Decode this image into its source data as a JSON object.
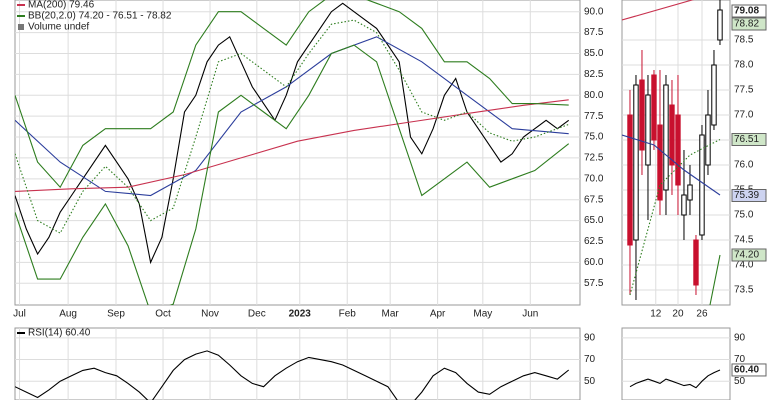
{
  "chart_data": [
    {
      "type": "line",
      "volume_label": "Volume undef",
      "xlim": [
        0,
        250
      ],
      "ylim": [
        54.9,
        91.4
      ],
      "xticks": [
        {
          "value": 2,
          "label": "Jul"
        },
        {
          "value": 23.5,
          "label": "Aug"
        },
        {
          "value": 44.7,
          "label": "Sep"
        },
        {
          "value": 65.5,
          "label": "Oct"
        },
        {
          "value": 86.3,
          "label": "Nov"
        },
        {
          "value": 107,
          "label": "Dec"
        },
        {
          "value": 126,
          "label": "2023"
        },
        {
          "value": 147,
          "label": "Feb"
        },
        {
          "value": 166,
          "label": "Mar"
        },
        {
          "value": 187,
          "label": "Apr"
        },
        {
          "value": 207,
          "label": "May"
        },
        {
          "value": 228,
          "label": "Jun"
        }
      ],
      "yticks": [
        {
          "value": 57.5,
          "label": "57.5"
        },
        {
          "value": 60,
          "label": "60.0"
        },
        {
          "value": 62.5,
          "label": "62.5"
        },
        {
          "value": 65,
          "label": "65.0"
        },
        {
          "value": 67.5,
          "label": "67.5"
        },
        {
          "value": 70,
          "label": "70.0"
        },
        {
          "value": 72.5,
          "label": "72.5"
        },
        {
          "value": 75,
          "label": "75.0"
        },
        {
          "value": 77.5,
          "label": "77.5"
        },
        {
          "value": 80,
          "label": "80.0"
        },
        {
          "value": 82.5,
          "label": "82.5"
        },
        {
          "value": 85,
          "label": "85.0"
        },
        {
          "value": 87.5,
          "label": "87.5"
        },
        {
          "value": 90,
          "label": "90.0"
        }
      ],
      "grid": true,
      "series": [
        {
          "color": "#000000",
          "x": [
            0,
            5,
            10,
            15,
            20,
            25,
            30,
            35,
            40,
            45,
            50,
            55,
            60,
            65,
            70,
            75,
            80,
            85,
            90,
            95,
            100,
            105,
            110,
            115,
            120,
            125,
            130,
            135,
            140,
            145,
            150,
            155,
            160,
            165,
            170,
            175,
            180,
            185,
            190,
            195,
            200,
            205,
            210,
            215,
            220,
            225,
            230,
            235,
            240,
            245
          ],
          "values": [
            68,
            64,
            61,
            63,
            66,
            68,
            70,
            72,
            74,
            72,
            70,
            67,
            60,
            63,
            70,
            78,
            80,
            84,
            86,
            87,
            84,
            81,
            79,
            77,
            80,
            84,
            86,
            88,
            90,
            91,
            90,
            89,
            88,
            86,
            84,
            75,
            73,
            76,
            80,
            82,
            78,
            76,
            74,
            72,
            73,
            75,
            76,
            77,
            76,
            77
          ]
        },
        {
          "color": "#2c3e9c",
          "x": [
            0,
            20,
            40,
            60,
            80,
            100,
            120,
            140,
            160,
            180,
            200,
            220,
            245
          ],
          "values": [
            77,
            72,
            68.5,
            68,
            71,
            78,
            81,
            85,
            87,
            84,
            80,
            76,
            75.4
          ]
        },
        {
          "name": "MA(200) 79.46",
          "color": "#c8324f",
          "x": [
            0,
            25,
            50,
            75,
            100,
            125,
            150,
            175,
            200,
            225,
            245
          ],
          "values": [
            68.5,
            68.8,
            69,
            70.5,
            72.5,
            74.5,
            75.8,
            76.8,
            77.8,
            78.8,
            79.46
          ]
        },
        {
          "name": "BB(20,2.0) 74.20 - 76.51 - 78.82",
          "color": "#2e7d1f",
          "x": [
            0,
            10,
            20,
            30,
            40,
            50,
            60,
            70,
            80,
            90,
            100,
            110,
            120,
            130,
            140,
            150,
            160,
            170,
            180,
            190,
            200,
            210,
            220,
            230,
            245
          ],
          "values": [
            80,
            72,
            69,
            74,
            76,
            76,
            76,
            78,
            86,
            90,
            90,
            88,
            86,
            90,
            92,
            92,
            91,
            90,
            88,
            84,
            84,
            82,
            79,
            79,
            78.82
          ]
        },
        {
          "color": "#2e7d1f",
          "dash": "dotted",
          "x": [
            0,
            10,
            20,
            30,
            40,
            50,
            60,
            70,
            80,
            90,
            100,
            110,
            120,
            130,
            140,
            150,
            160,
            170,
            180,
            190,
            200,
            210,
            220,
            230,
            245
          ],
          "values": [
            73,
            65,
            63.5,
            68.5,
            71.5,
            69,
            65,
            66.5,
            75,
            84,
            85,
            83,
            81,
            85,
            88.5,
            89,
            87.5,
            83,
            78,
            77,
            78,
            75.5,
            74.5,
            75,
            76.51
          ]
        },
        {
          "color": "#2e7d1f",
          "x": [
            0,
            10,
            20,
            30,
            40,
            50,
            60,
            70,
            80,
            90,
            100,
            110,
            120,
            130,
            140,
            150,
            160,
            170,
            180,
            190,
            200,
            210,
            220,
            230,
            245
          ],
          "values": [
            66,
            58,
            58,
            63,
            67,
            62,
            54,
            55,
            64,
            78,
            80,
            78,
            76,
            80,
            85,
            86,
            84,
            76,
            68,
            70,
            72,
            69,
            70,
            71,
            74.2
          ]
        }
      ]
    },
    {
      "type": "candlestick",
      "xlim": [
        -1.33,
        16.67
      ],
      "ylim": [
        73.2,
        79.3
      ],
      "xticks": [
        {
          "value": 4.3,
          "label": "12"
        },
        {
          "value": 8,
          "label": "20"
        },
        {
          "value": 12,
          "label": "26"
        }
      ],
      "yticks": [
        {
          "value": 73.5,
          "label": "73.5"
        },
        {
          "value": 74,
          "label": "74.0"
        },
        {
          "value": 74.5,
          "label": "74.5"
        },
        {
          "value": 75,
          "label": "75.0"
        },
        {
          "value": 75.5,
          "label": "75.5"
        },
        {
          "value": 76,
          "label": "76.0"
        },
        {
          "value": 76.5,
          "label": "76.5"
        },
        {
          "value": 77,
          "label": "77.0"
        },
        {
          "value": 77.5,
          "label": "77.5"
        },
        {
          "value": 78,
          "label": "78.0"
        },
        {
          "value": 78.5,
          "label": "78.5"
        }
      ],
      "grid": true,
      "up_color": "#000000",
      "down_color": "#c8102e",
      "x": [
        0,
        1,
        2,
        3,
        4,
        5,
        6,
        7,
        8,
        9,
        10,
        11,
        12,
        13,
        14,
        15
      ],
      "open": [
        77.0,
        74.5,
        77.7,
        76.0,
        77.8,
        76.8,
        75.5,
        77.2,
        77.0,
        75.0,
        75.3,
        74.5,
        74.6,
        76.0,
        76.8,
        78.5
      ],
      "high": [
        77.5,
        77.8,
        78.3,
        77.8,
        77.9,
        77.9,
        77.8,
        77.7,
        77.8,
        76.3,
        76.0,
        74.6,
        76.8,
        77.5,
        78.3,
        79.3
      ],
      "low": [
        73.4,
        73.3,
        75.8,
        74.9,
        76.3,
        75.0,
        75.0,
        75.4,
        75.0,
        74.5,
        75.0,
        73.4,
        74.5,
        75.8,
        76.7,
        78.4
      ],
      "close": [
        74.4,
        77.6,
        76.3,
        77.4,
        76.5,
        75.3,
        77.6,
        76.0,
        75.6,
        75.4,
        75.6,
        73.6,
        76.6,
        77.0,
        78.0,
        79.1
      ],
      "series": [
        {
          "color": "#c8324f",
          "x": [
            -1.33,
            15
          ],
          "values": [
            78.9,
            79.46
          ]
        },
        {
          "color": "#2c3e9c",
          "x": [
            -1.33,
            4,
            9,
            15
          ],
          "values": [
            76.6,
            76.4,
            75.9,
            75.4
          ]
        },
        {
          "color": "#2e7d1f",
          "dash": "dotted",
          "x": [
            0,
            5,
            10,
            15
          ],
          "values": [
            73.4,
            75.6,
            76.2,
            76.51
          ]
        },
        {
          "color": "#2e7d1f",
          "x": [
            13,
            15
          ],
          "values": [
            73.0,
            74.2
          ]
        }
      ],
      "annotations": [
        {
          "value": 79.08,
          "label": "79.08",
          "color": "#ffffff"
        },
        {
          "value": 78.82,
          "label": "78.82",
          "color": "#cfe6c8"
        },
        {
          "value": 76.51,
          "label": "76.51",
          "color": "#cfe6c8"
        },
        {
          "value": 75.39,
          "label": "75.39",
          "color": "#cdd3f0"
        },
        {
          "value": 74.2,
          "label": "74.20",
          "color": "#cfe6c8"
        }
      ]
    },
    {
      "type": "line",
      "xlim": [
        0,
        250
      ],
      "ylim": [
        32.7,
        99.1
      ],
      "xticks": [
        {
          "value": 2,
          "label": ""
        },
        {
          "value": 23.5
        },
        {
          "value": 44.7
        },
        {
          "value": 65.5
        },
        {
          "value": 86.3
        },
        {
          "value": 107
        },
        {
          "value": 126
        },
        {
          "value": 147
        },
        {
          "value": 166
        },
        {
          "value": 187
        },
        {
          "value": 207
        },
        {
          "value": 228
        }
      ],
      "yticks": [
        50,
        70,
        90
      ],
      "grid": true,
      "series": [
        {
          "name": "RSI(14) 60.40",
          "color": "#000000",
          "x": [
            0,
            5,
            10,
            15,
            20,
            25,
            30,
            35,
            40,
            45,
            50,
            55,
            60,
            65,
            70,
            75,
            80,
            85,
            90,
            95,
            100,
            105,
            110,
            115,
            120,
            125,
            130,
            135,
            140,
            145,
            150,
            155,
            160,
            165,
            170,
            175,
            180,
            185,
            190,
            195,
            200,
            205,
            210,
            215,
            220,
            225,
            230,
            235,
            240,
            245
          ],
          "values": [
            45,
            40,
            35,
            42,
            50,
            55,
            60,
            62,
            58,
            55,
            48,
            40,
            30,
            45,
            60,
            70,
            75,
            78,
            74,
            65,
            55,
            48,
            45,
            55,
            62,
            68,
            72,
            70,
            68,
            65,
            60,
            55,
            50,
            45,
            30,
            28,
            40,
            55,
            62,
            58,
            48,
            40,
            38,
            45,
            50,
            55,
            58,
            55,
            52,
            60.4
          ]
        }
      ]
    },
    {
      "type": "line",
      "xlim": [
        -1.33,
        16.67
      ],
      "ylim": [
        32.7,
        99.1
      ],
      "yticks": [
        50,
        70,
        90
      ],
      "grid": true,
      "series": [
        {
          "color": "#000000",
          "x": [
            0,
            1,
            2,
            3,
            4,
            5,
            6,
            7,
            8,
            9,
            10,
            11,
            12,
            13,
            14,
            15
          ],
          "values": [
            45,
            48,
            50,
            52,
            50,
            48,
            52,
            50,
            48,
            46,
            47,
            44,
            50,
            55,
            58,
            60.4
          ]
        }
      ],
      "annotations": [
        {
          "value": 60.4,
          "label": "60.40",
          "color": "#ffffff"
        }
      ]
    }
  ]
}
